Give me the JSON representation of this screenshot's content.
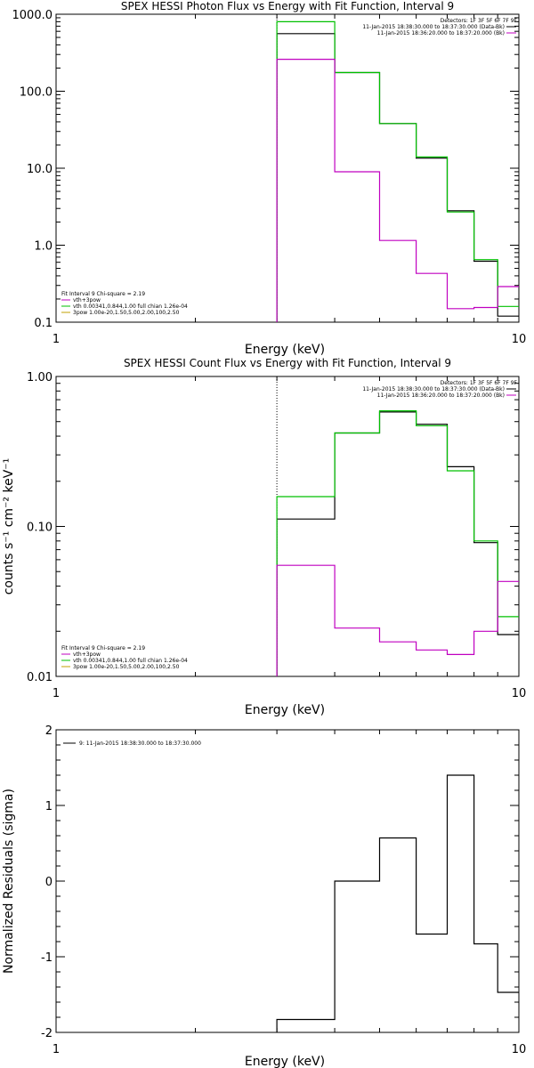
{
  "chart_data": [
    {
      "type": "line",
      "title": "SPEX HESSI Photon Flux vs Energy with Fit Function, Interval 9",
      "xlabel": "Energy (keV)",
      "ylabel": "",
      "xscale": "log",
      "yscale": "log",
      "xlim": [
        1,
        10
      ],
      "ylim": [
        0.1,
        1000
      ],
      "xticklabels": [
        "1",
        "10"
      ],
      "yticklabels": [
        "1000.0",
        "100.0",
        "10.0",
        "1.0",
        "0.1"
      ],
      "yticks": [
        1000,
        100,
        10,
        1,
        0.1
      ],
      "vline_x": 3.0,
      "legend_top": {
        "header": "Detectors: 1F 3F 5F 6F 7F 9F",
        "entries": [
          {
            "text": "11-Jan-2015 18:38:30.000 to 18:37:30.000 (Data-Bk)",
            "color": "#000000"
          },
          {
            "text": "11-Jan-2015 18:36:20.000 to 18:37:20.000 (Bk)",
            "color": "#c000c0"
          }
        ]
      },
      "legend_bottom": {
        "header": "Fit Interval 9   Chi-square = 2.19",
        "entries": [
          {
            "text": "vth+3pow",
            "color": "#c000c0"
          },
          {
            "text": "vth 0.00341,0.844,1.00  full chian 1.26e-04",
            "color": "#00c000"
          },
          {
            "text": "3pow 1.00e-20,1.50,5.00,2.00,100,2.50",
            "color": "#c0a000"
          }
        ]
      },
      "bin_edges": [
        3.0,
        4.0,
        5.0,
        6.0,
        7.0,
        8.0,
        9.0,
        10.0
      ],
      "series": [
        {
          "color": "#000000",
          "values": [
            560,
            175,
            38,
            13.5,
            2.8,
            0.62,
            0.12
          ]
        },
        {
          "color": "#00c000",
          "values": [
            800,
            175,
            38,
            14,
            2.7,
            0.65,
            0.16
          ]
        },
        {
          "color": "#c000c0",
          "values": [
            260,
            9,
            1.15,
            0.43,
            0.15,
            0.155,
            0.29
          ]
        }
      ]
    },
    {
      "type": "line",
      "title": "SPEX HESSI Count Flux vs Energy with Fit Function, Interval 9",
      "xlabel": "Energy (keV)",
      "ylabel": "counts s⁻¹ cm⁻² keV⁻¹",
      "xscale": "log",
      "yscale": "log",
      "xlim": [
        1,
        10
      ],
      "ylim": [
        0.01,
        1.0
      ],
      "xticklabels": [
        "1",
        "10"
      ],
      "yticklabels": [
        "1.00",
        "0.10",
        "0.01"
      ],
      "yticks": [
        1.0,
        0.1,
        0.01
      ],
      "vline_x": 3.0,
      "legend_top": {
        "header": "Detectors: 1F 3F 5F 6F 7F 9F",
        "entries": [
          {
            "text": "11-Jan-2015 18:38:30.000 to 18:37:30.000 (Data-Bk)",
            "color": "#000000"
          },
          {
            "text": "11-Jan-2015 18:36:20.000 to 18:37:20.000 (Bk)",
            "color": "#c000c0"
          }
        ]
      },
      "legend_bottom": {
        "header": "Fit Interval 9   Chi-square = 2.19",
        "entries": [
          {
            "text": "vth+3pow",
            "color": "#c000c0"
          },
          {
            "text": "vth 0.00341,0.844,1.00  full chian 1.26e-04",
            "color": "#00c000"
          },
          {
            "text": "3pow 1.00e-20,1.50,5.00,2.00,100,2.50",
            "color": "#c0a000"
          }
        ]
      },
      "bin_edges": [
        3.0,
        4.0,
        5.0,
        6.0,
        7.0,
        8.0,
        9.0,
        10.0
      ],
      "series": [
        {
          "color": "#000000",
          "values": [
            0.112,
            0.42,
            0.58,
            0.48,
            0.25,
            0.078,
            0.019
          ]
        },
        {
          "color": "#00c000",
          "values": [
            0.158,
            0.42,
            0.59,
            0.47,
            0.235,
            0.08,
            0.025
          ]
        },
        {
          "color": "#c000c0",
          "values": [
            0.055,
            0.021,
            0.017,
            0.015,
            0.014,
            0.02,
            0.043
          ]
        }
      ]
    },
    {
      "type": "line",
      "title": "",
      "xlabel": "Energy (keV)",
      "ylabel": "Normalized Residuals (sigma)",
      "xscale": "log",
      "yscale": "linear",
      "xlim": [
        1,
        10
      ],
      "ylim": [
        -2,
        2
      ],
      "xticklabels": [
        "1",
        "10"
      ],
      "yticklabels": [
        "2",
        "1",
        "0",
        "-1",
        "-2"
      ],
      "yticks": [
        2,
        1,
        0,
        -1,
        -2
      ],
      "legend_top": {
        "header": "",
        "entries": [
          {
            "text": "9: 11-Jan-2015 18:38:30.000 to 18:37:30.000",
            "color": "#000000"
          }
        ]
      },
      "bin_edges": [
        3.0,
        4.0,
        5.0,
        6.0,
        7.0,
        8.0,
        9.0,
        10.0
      ],
      "series": [
        {
          "color": "#000000",
          "values": [
            -1.83,
            0.0,
            0.57,
            -0.7,
            1.4,
            -0.83,
            -1.47
          ]
        }
      ]
    }
  ]
}
